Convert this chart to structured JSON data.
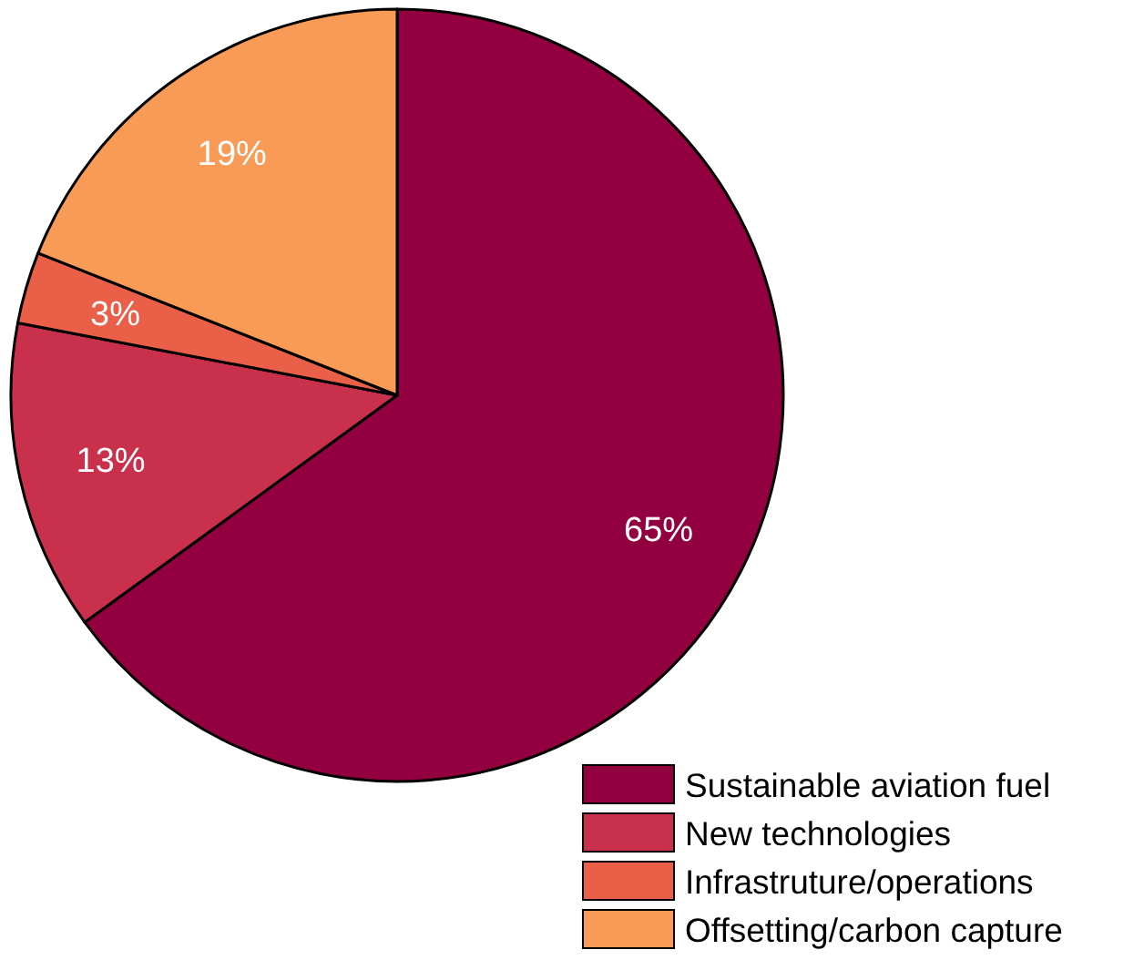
{
  "chart_data": {
    "type": "pie",
    "categories": [
      "Sustainable aviation fuel",
      "New technologies",
      "Infrastruture/operations",
      "Offsetting/carbon capture"
    ],
    "values": [
      65,
      13,
      3,
      19
    ],
    "colors": [
      "#930040",
      "#c8304b",
      "#e95f48",
      "#f79b56"
    ],
    "value_labels": [
      "65%",
      "13%",
      "3%",
      "19%"
    ],
    "legend": "bottom right"
  }
}
